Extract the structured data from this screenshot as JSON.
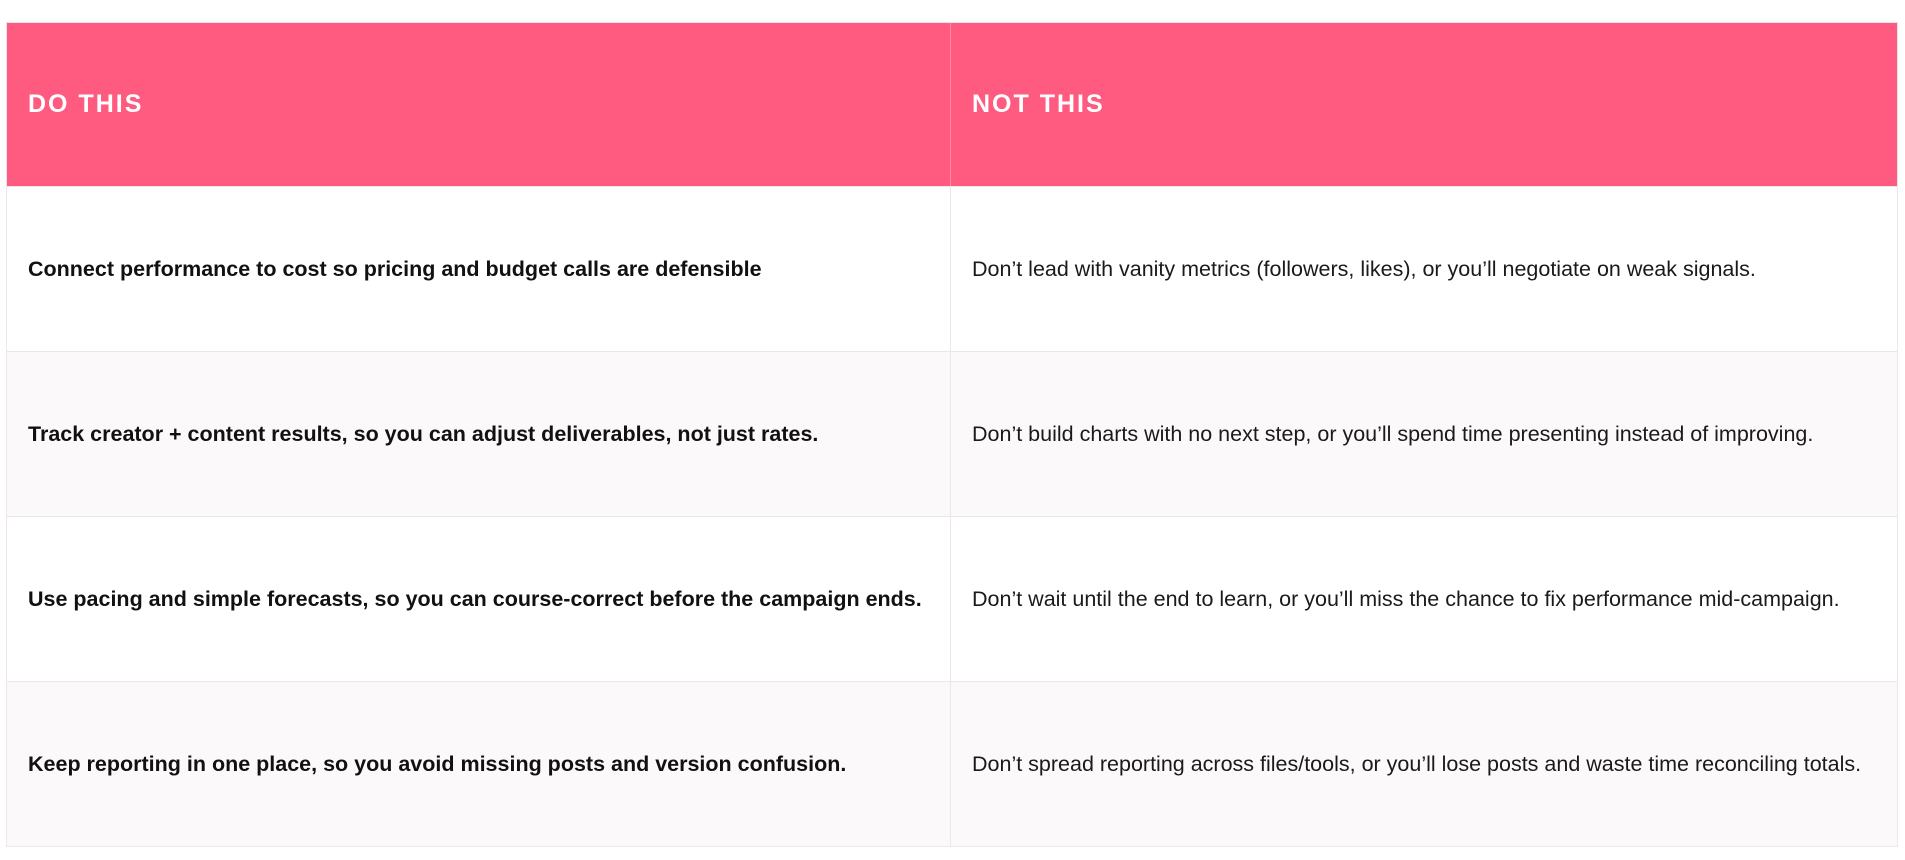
{
  "table": {
    "headers": [
      "DO THIS",
      "NOT THIS"
    ],
    "header_color": "#ff5a80",
    "rows": [
      {
        "do": "Connect performance to cost so pricing and budget calls are defensible",
        "not": "Don’t lead with vanity metrics (followers, likes), or you’ll negotiate on weak signals."
      },
      {
        "do": "Track creator + content results, so you can adjust deliverables, not just rates.",
        "not": "Don’t build charts with no next step, or you’ll spend time presenting instead of improving."
      },
      {
        "do": "Use pacing and simple forecasts, so you can course-correct before the campaign ends.",
        "not": "Don’t wait until the end to learn, or you’ll miss the chance to fix performance mid-campaign."
      },
      {
        "do": "Keep reporting in one place, so you avoid missing posts and version confusion.",
        "not": "Don’t spread reporting across files/tools, or you’ll lose posts and waste time reconciling totals."
      }
    ]
  }
}
